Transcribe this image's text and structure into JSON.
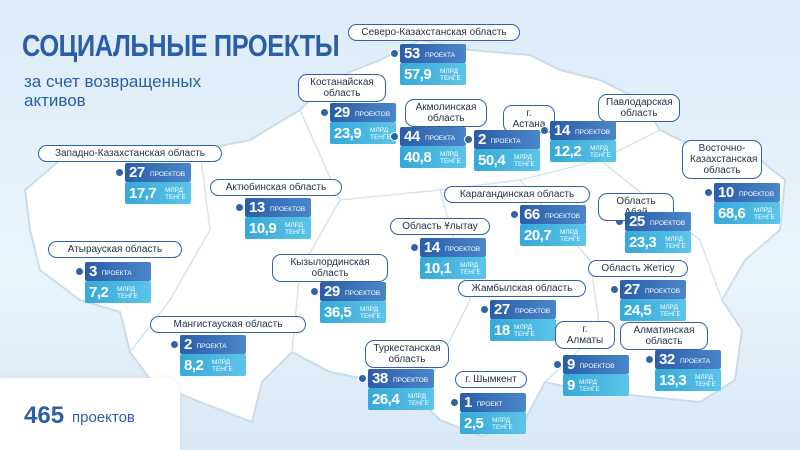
{
  "header": {
    "title": "СОЦИАЛЬНЫЕ ПРОЕКТЫ",
    "subtitle": "за счет возвращенных активов"
  },
  "total": {
    "count": "465",
    "unit": "проектов"
  },
  "regions": [
    {
      "name": "Северо-Казахстанская область",
      "projects": "53",
      "projects_unit": "ПРОЕКТА",
      "amount": "57,9",
      "amount_unit": "МЛРД ТЕНГЕ"
    },
    {
      "name": "Костанайская область",
      "projects": "29",
      "projects_unit": "ПРОЕКТОВ",
      "amount": "23,9",
      "amount_unit": "МЛРД ТЕНГЕ"
    },
    {
      "name": "Акмолинская область",
      "projects": "44",
      "projects_unit": "ПРОЕКТА",
      "amount": "40,8",
      "amount_unit": "МЛРД ТЕНГЕ"
    },
    {
      "name": "г. Астана",
      "projects": "2",
      "projects_unit": "ПРОЕКТА",
      "amount": "50,4",
      "amount_unit": "МЛРД ТЕНГЕ"
    },
    {
      "name": "Павлодарская область",
      "projects": "14",
      "projects_unit": "ПРОЕКТОВ",
      "amount": "12,2",
      "amount_unit": "МЛРД ТЕНГЕ"
    },
    {
      "name": "Западно-Казахстанская область",
      "projects": "27",
      "projects_unit": "ПРОЕКТОВ",
      "amount": "17,7",
      "amount_unit": "МЛРД ТЕНГЕ"
    },
    {
      "name": "Восточно-Казахстанская область",
      "projects": "10",
      "projects_unit": "ПРОЕКТОВ",
      "amount": "68,6",
      "amount_unit": "МЛРД ТЕНГЕ"
    },
    {
      "name": "Актюбинская область",
      "projects": "13",
      "projects_unit": "ПРОЕКТОВ",
      "amount": "10,9",
      "amount_unit": "МЛРД ТЕНГЕ"
    },
    {
      "name": "Карагандинская область",
      "projects": "66",
      "projects_unit": "ПРОЕКТОВ",
      "amount": "20,7",
      "amount_unit": "МЛРД ТЕНГЕ"
    },
    {
      "name": "Область Абай",
      "projects": "25",
      "projects_unit": "ПРОЕКТОВ",
      "amount": "23,3",
      "amount_unit": "МЛРД ТЕНГЕ"
    },
    {
      "name": "Область Ұлытау",
      "projects": "14",
      "projects_unit": "ПРОЕКТОВ",
      "amount": "10,1",
      "amount_unit": "МЛРД ТЕНГЕ"
    },
    {
      "name": "Атырауская область",
      "projects": "3",
      "projects_unit": "ПРОЕКТА",
      "amount": "7,2",
      "amount_unit": "МЛРД ТЕНГЕ"
    },
    {
      "name": "Кызылординская область",
      "projects": "29",
      "projects_unit": "ПРОЕКТОВ",
      "amount": "36,5",
      "amount_unit": "МЛРД ТЕНГЕ"
    },
    {
      "name": "Область Жетісу",
      "projects": "27",
      "projects_unit": "ПРОЕКТОВ",
      "amount": "24,5",
      "amount_unit": "МЛРД ТЕНГЕ"
    },
    {
      "name": "Жамбылская область",
      "projects": "27",
      "projects_unit": "ПРОЕКТОВ",
      "amount": "18",
      "amount_unit": "МЛРД ТЕНГЕ"
    },
    {
      "name": "Мангистауская область",
      "projects": "2",
      "projects_unit": "ПРОЕКТА",
      "amount": "8,2",
      "amount_unit": "МЛРД ТЕНГЕ"
    },
    {
      "name": "г. Алматы",
      "projects": "9",
      "projects_unit": "ПРОЕКТОВ",
      "amount": "9",
      "amount_unit": "МЛРД ТЕНГЕ"
    },
    {
      "name": "Алматинская область",
      "projects": "32",
      "projects_unit": "ПРОЕКТА",
      "amount": "13,3",
      "amount_unit": "МЛРД ТЕНГЕ"
    },
    {
      "name": "Туркестанская область",
      "projects": "38",
      "projects_unit": "ПРОЕКТОВ",
      "amount": "26,4",
      "amount_unit": "МЛРД ТЕНГЕ"
    },
    {
      "name": "г. Шымкент",
      "projects": "1",
      "projects_unit": "ПРОЕКТ",
      "amount": "2,5",
      "amount_unit": "МЛРД ТЕНГЕ"
    }
  ]
}
